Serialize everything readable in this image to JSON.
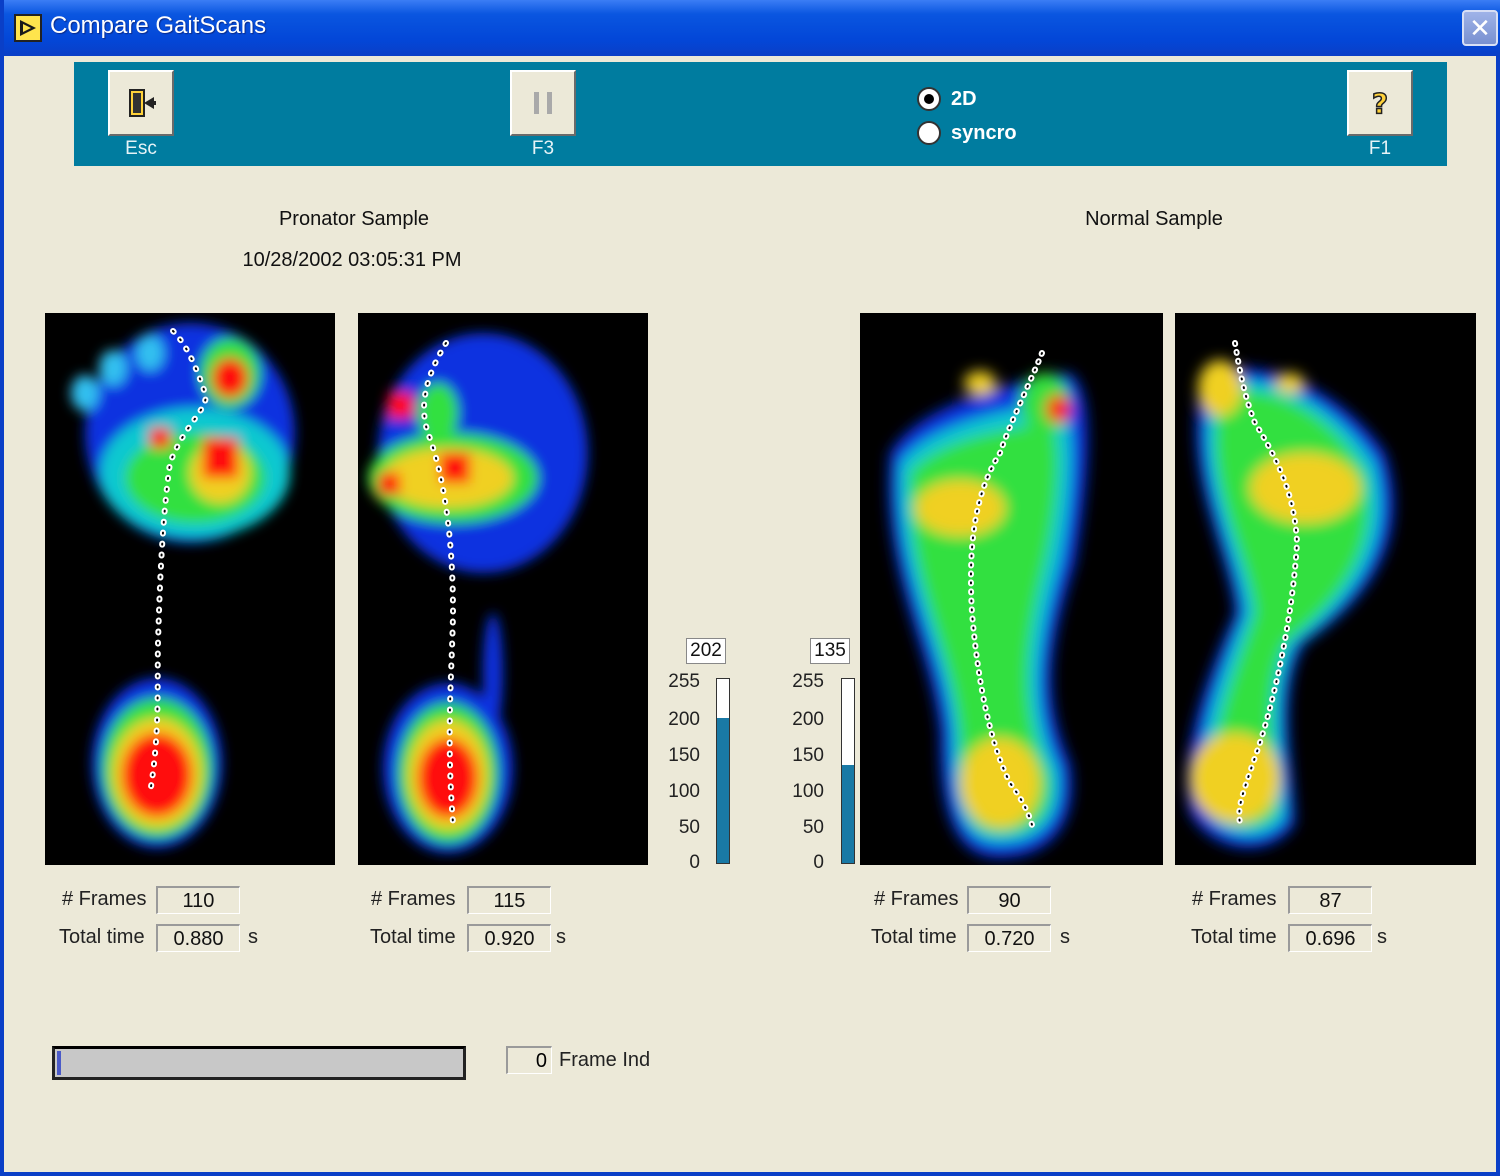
{
  "window": {
    "title": "Compare GaitScans",
    "close_label": "✕"
  },
  "toolbar": {
    "esc_label": "Esc",
    "pause_label": "F3",
    "help_label": "F1",
    "radio_options": [
      {
        "label": "2D",
        "selected": true
      },
      {
        "label": "syncro",
        "selected": false
      }
    ]
  },
  "left_sample": {
    "title": "Pronator Sample",
    "timestamp": "10/28/2002 03:05:31 PM",
    "scans": [
      {
        "frames_label": "# Frames",
        "frames": "110",
        "time_label": "Total time",
        "time": "0.880",
        "unit": "s"
      },
      {
        "frames_label": "# Frames",
        "frames": "115",
        "time_label": "Total time",
        "time": "0.920",
        "unit": "s"
      }
    ],
    "scale": {
      "max_value": "202",
      "ticks": [
        "255",
        "200",
        "150",
        "100",
        "50",
        "0"
      ],
      "fill_fraction": 0.79
    }
  },
  "right_sample": {
    "title": "Normal Sample",
    "scans": [
      {
        "frames_label": "# Frames",
        "frames": "90",
        "time_label": "Total time",
        "time": "0.720",
        "unit": "s"
      },
      {
        "frames_label": "# Frames",
        "frames": "87",
        "time_label": "Total time",
        "time": "0.696",
        "unit": "s"
      }
    ],
    "scale": {
      "max_value": "135",
      "ticks": [
        "255",
        "200",
        "150",
        "100",
        "50",
        "0"
      ],
      "fill_fraction": 0.53
    }
  },
  "frame": {
    "index": "0",
    "label": "Frame Ind",
    "progress": 0.0
  },
  "colors": {
    "toolbar": "#007c9f",
    "titlebar": "#0a56e0",
    "scale_fill": "#1979a5"
  }
}
